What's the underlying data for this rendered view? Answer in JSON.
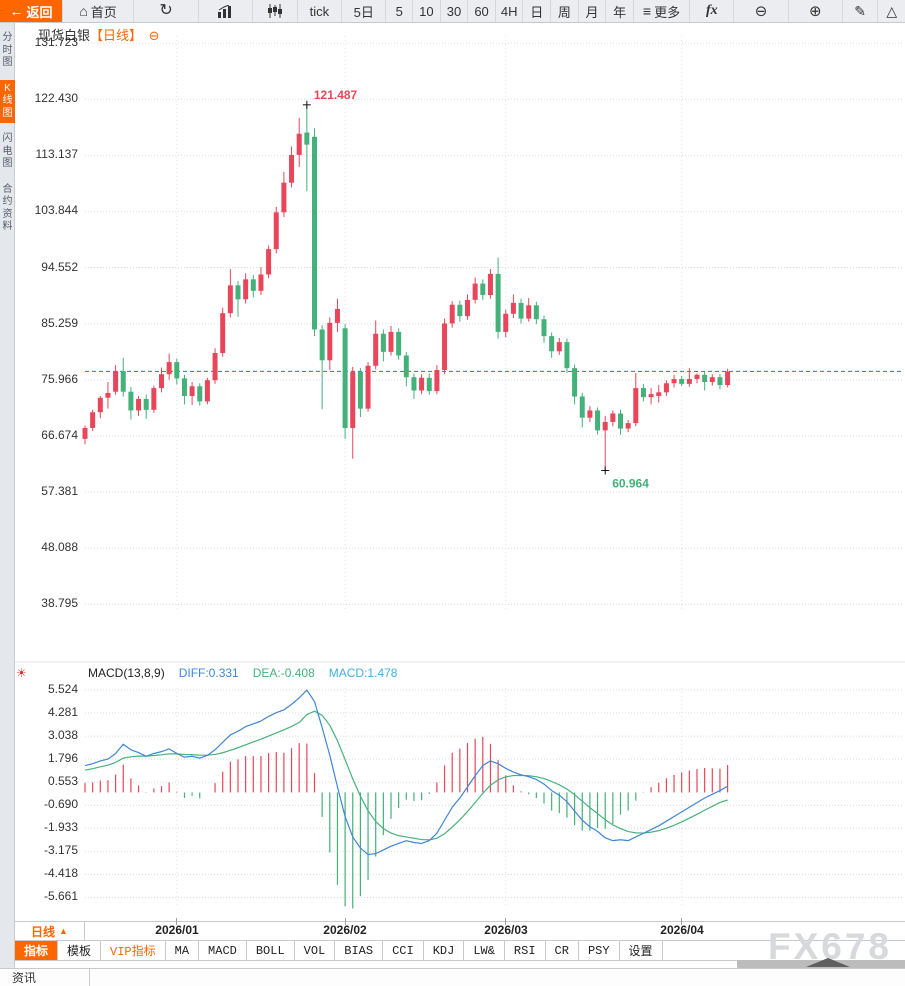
{
  "toolbar": {
    "back": "返回",
    "home": "首页",
    "tick": "tick",
    "d5": "5日",
    "m5": "5",
    "m10": "10",
    "m30": "30",
    "m60": "60",
    "h4": "4H",
    "day": "日",
    "week": "周",
    "month": "月",
    "year": "年",
    "more": "更多",
    "fx": "fx"
  },
  "icons": {
    "back": "←",
    "home": "⌂",
    "refresh": "↻",
    "more": "≡",
    "zoom_out": "⊖",
    "zoom_in": "⊕",
    "draw": "✎",
    "shape": "△",
    "collapse": "⊖",
    "indicator_settings": "☀",
    "period_arrow": "▲"
  },
  "sidebar": {
    "items": [
      {
        "label": "分时图",
        "active": false
      },
      {
        "label": "K线图",
        "active": true
      },
      {
        "label": "闪电图",
        "active": false
      },
      {
        "label": "合约资料",
        "active": false
      }
    ]
  },
  "chart_header": {
    "title": "现货白银",
    "period_tag": "【日线】"
  },
  "macd_header": {
    "name": "MACD(13,8,9)",
    "diff": "DIFF:0.331",
    "dea": "DEA:-0.408",
    "macd": "MACD:1.478"
  },
  "xaxis": {
    "period_label": "日线"
  },
  "indicator_tabs": [
    "指标",
    "模板",
    "VIP指标",
    "MA",
    "MACD",
    "BOLL",
    "VOL",
    "BIAS",
    "CCI",
    "KDJ",
    "LW&",
    "RSI",
    "CR",
    "PSY",
    "设置"
  ],
  "bottom_bar": {
    "news_label": "资讯"
  },
  "watermark": "FX678",
  "colors": {
    "accent": "#ff6600",
    "up": "#e8465a",
    "down": "#44b17a",
    "diff_line": "#3f86d6",
    "dea_line": "#47b27c",
    "macd_value": "#41b1dd",
    "price_line": "#1779d8",
    "grid": "#dcdcdc",
    "watermark": "#d7d9dd"
  },
  "chart_data": {
    "type": "candlestick+macd",
    "symbol": "现货白银",
    "period": "日线",
    "price_axis_labels": [
      "131.723",
      "122.430",
      "113.137",
      "103.844",
      "94.552",
      "85.259",
      "75.966",
      "66.674",
      "57.381",
      "48.088",
      "38.795"
    ],
    "macd_axis_labels": [
      "5.524",
      "4.281",
      "3.038",
      "1.796",
      "0.553",
      "-0.690",
      "-1.933",
      "-3.175",
      "-4.418",
      "-5.661"
    ],
    "high_annotation": {
      "label": "121.487",
      "value": 121.487,
      "index": 29
    },
    "low_annotation": {
      "label": "60.964",
      "value": 60.964,
      "index": 68
    },
    "current_price_line": 77.36,
    "months": [
      {
        "label": "2026/01",
        "index": 12
      },
      {
        "label": "2026/02",
        "index": 34
      },
      {
        "label": "2026/03",
        "index": 55
      },
      {
        "label": "2026/04",
        "index": 78
      }
    ],
    "candles": [
      [
        66.2,
        68.4,
        65.3,
        68.0
      ],
      [
        68.0,
        71.0,
        67.5,
        70.6
      ],
      [
        70.6,
        73.3,
        69.6,
        73.0
      ],
      [
        73.0,
        75.6,
        71.2,
        73.8
      ],
      [
        74.0,
        78.4,
        73.5,
        77.4
      ],
      [
        77.4,
        79.6,
        73.2,
        74.0
      ],
      [
        74.0,
        74.8,
        69.4,
        70.9
      ],
      [
        70.9,
        73.3,
        70.0,
        72.8
      ],
      [
        72.8,
        73.5,
        69.5,
        71.0
      ],
      [
        71.0,
        75.0,
        70.5,
        74.6
      ],
      [
        74.6,
        78.0,
        73.9,
        76.9
      ],
      [
        76.9,
        80.3,
        76.0,
        78.9
      ],
      [
        78.9,
        79.5,
        75.2,
        76.2
      ],
      [
        76.2,
        76.8,
        71.9,
        73.3
      ],
      [
        73.3,
        75.6,
        71.8,
        74.9
      ],
      [
        74.9,
        75.4,
        71.7,
        72.4
      ],
      [
        72.4,
        76.3,
        71.9,
        75.9
      ],
      [
        75.9,
        81.2,
        75.3,
        80.4
      ],
      [
        80.4,
        87.9,
        79.8,
        87.0
      ],
      [
        87.0,
        94.3,
        86.3,
        91.6
      ],
      [
        91.6,
        92.3,
        86.4,
        89.3
      ],
      [
        89.3,
        93.6,
        88.6,
        92.6
      ],
      [
        92.6,
        93.3,
        89.6,
        90.7
      ],
      [
        90.7,
        94.6,
        90.0,
        93.4
      ],
      [
        93.4,
        98.2,
        92.8,
        97.6
      ],
      [
        97.6,
        104.6,
        96.9,
        103.7
      ],
      [
        103.7,
        110.4,
        102.9,
        108.6
      ],
      [
        108.6,
        114.6,
        107.8,
        113.2
      ],
      [
        113.2,
        119.3,
        111.2,
        116.7
      ],
      [
        116.9,
        121.487,
        107.2,
        114.9
      ],
      [
        116.2,
        117.6,
        83.2,
        84.3
      ],
      [
        84.3,
        85.0,
        71.1,
        79.2
      ],
      [
        79.2,
        86.3,
        77.6,
        85.4
      ],
      [
        85.4,
        89.4,
        83.9,
        87.7
      ],
      [
        84.5,
        85.2,
        66.2,
        68.0
      ],
      [
        68.0,
        78.1,
        62.9,
        77.3
      ],
      [
        77.3,
        77.9,
        69.8,
        71.2
      ],
      [
        71.2,
        78.9,
        70.7,
        78.3
      ],
      [
        78.3,
        85.8,
        77.7,
        83.6
      ],
      [
        83.6,
        84.3,
        79.0,
        80.6
      ],
      [
        80.6,
        84.9,
        80.0,
        83.9
      ],
      [
        83.9,
        84.5,
        79.3,
        80.0
      ],
      [
        80.0,
        80.6,
        74.9,
        76.4
      ],
      [
        76.4,
        77.0,
        72.8,
        74.2
      ],
      [
        74.2,
        76.9,
        73.6,
        76.3
      ],
      [
        76.3,
        77.0,
        73.5,
        74.1
      ],
      [
        74.1,
        78.4,
        73.6,
        77.6
      ],
      [
        77.6,
        86.1,
        76.9,
        85.3
      ],
      [
        85.3,
        89.0,
        84.6,
        88.4
      ],
      [
        88.4,
        89.1,
        85.6,
        86.5
      ],
      [
        86.5,
        90.1,
        85.9,
        89.2
      ],
      [
        89.2,
        92.9,
        88.6,
        91.9
      ],
      [
        91.9,
        92.6,
        89.2,
        90.0
      ],
      [
        90.0,
        94.3,
        89.4,
        93.5
      ],
      [
        93.5,
        96.2,
        82.8,
        83.9
      ],
      [
        83.9,
        87.6,
        83.0,
        86.9
      ],
      [
        86.9,
        90.1,
        86.2,
        88.7
      ],
      [
        88.7,
        89.4,
        85.3,
        86.1
      ],
      [
        86.1,
        89.5,
        85.6,
        88.3
      ],
      [
        88.3,
        88.9,
        85.2,
        86.0
      ],
      [
        86.0,
        86.6,
        82.1,
        83.2
      ],
      [
        83.2,
        83.8,
        79.6,
        80.7
      ],
      [
        80.7,
        82.9,
        80.1,
        82.2
      ],
      [
        82.2,
        82.8,
        77.1,
        77.9
      ],
      [
        77.9,
        78.5,
        71.9,
        73.2
      ],
      [
        73.2,
        73.8,
        68.1,
        69.7
      ],
      [
        69.7,
        71.6,
        69.0,
        70.9
      ],
      [
        70.9,
        71.4,
        66.9,
        67.6
      ],
      [
        67.6,
        70.0,
        60.964,
        69.0
      ],
      [
        69.0,
        70.9,
        68.3,
        70.4
      ],
      [
        70.4,
        71.0,
        66.9,
        67.9
      ],
      [
        67.9,
        69.3,
        67.3,
        68.8
      ],
      [
        68.8,
        77.1,
        68.3,
        74.6
      ],
      [
        74.6,
        75.3,
        72.4,
        73.1
      ],
      [
        73.1,
        74.6,
        71.9,
        73.6
      ],
      [
        73.3,
        75.1,
        72.2,
        73.9
      ],
      [
        73.9,
        75.9,
        73.3,
        75.4
      ],
      [
        75.4,
        76.8,
        74.7,
        76.1
      ],
      [
        76.1,
        76.6,
        74.9,
        75.3
      ],
      [
        75.3,
        77.9,
        74.8,
        76.1
      ],
      [
        76.1,
        77.0,
        75.4,
        76.8
      ],
      [
        76.8,
        77.3,
        74.2,
        75.6
      ],
      [
        75.6,
        76.9,
        75.0,
        76.4
      ],
      [
        76.4,
        76.9,
        74.4,
        75.1
      ],
      [
        75.1,
        77.8,
        74.7,
        77.36
      ]
    ],
    "macd": {
      "params": "(13,8,9)",
      "diff": [
        1.45,
        1.55,
        1.7,
        1.8,
        2.1,
        2.6,
        2.3,
        2.15,
        1.95,
        2.1,
        2.2,
        2.35,
        2.1,
        1.9,
        1.95,
        1.85,
        2.0,
        2.3,
        2.7,
        3.1,
        3.3,
        3.55,
        3.7,
        3.85,
        4.1,
        4.3,
        4.45,
        4.75,
        5.1,
        5.52,
        4.9,
        3.5,
        2.0,
        0.3,
        -1.3,
        -2.4,
        -3.0,
        -3.35,
        -3.3,
        -3.1,
        -2.9,
        -2.75,
        -2.6,
        -2.7,
        -2.75,
        -2.6,
        -2.2,
        -1.5,
        -0.8,
        -0.3,
        0.3,
        0.9,
        1.45,
        1.7,
        1.55,
        1.3,
        1.1,
        0.95,
        0.85,
        0.7,
        0.45,
        0.1,
        -0.15,
        -0.5,
        -1.0,
        -1.5,
        -1.85,
        -2.1,
        -2.45,
        -2.6,
        -2.55,
        -2.6,
        -2.4,
        -2.2,
        -2.0,
        -1.8,
        -1.55,
        -1.3,
        -1.05,
        -0.8,
        -0.55,
        -0.3,
        -0.1,
        0.1,
        0.331
      ],
      "dea": [
        1.2,
        1.28,
        1.38,
        1.47,
        1.62,
        1.85,
        1.92,
        1.96,
        1.96,
        1.99,
        2.03,
        2.08,
        2.08,
        2.05,
        2.04,
        2.01,
        2.01,
        2.05,
        2.14,
        2.27,
        2.41,
        2.57,
        2.72,
        2.87,
        3.04,
        3.21,
        3.38,
        3.56,
        3.77,
        4.2,
        4.38,
        4.16,
        3.62,
        2.79,
        1.77,
        0.73,
        -0.2,
        -0.99,
        -1.57,
        -1.95,
        -2.19,
        -2.33,
        -2.4,
        -2.47,
        -2.54,
        -2.56,
        -2.47,
        -2.23,
        -1.87,
        -1.48,
        -1.03,
        -0.55,
        -0.05,
        0.39,
        0.68,
        0.84,
        0.91,
        0.92,
        0.9,
        0.85,
        0.75,
        0.59,
        0.41,
        0.18,
        -0.12,
        -0.47,
        -0.82,
        -1.14,
        -1.47,
        -1.75,
        -1.95,
        -2.11,
        -2.18,
        -2.19,
        -2.14,
        -2.06,
        -1.93,
        -1.77,
        -1.59,
        -1.39,
        -1.18,
        -0.96,
        -0.75,
        -0.54,
        -0.408
      ]
    },
    "histogram_rule": "bar = 2*(diff-dea)"
  }
}
